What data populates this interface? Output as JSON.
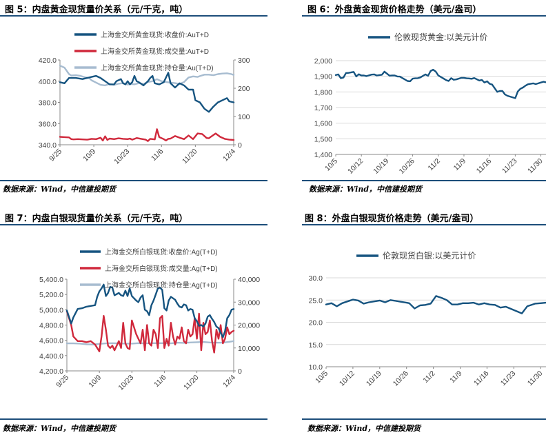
{
  "source_note": "数据来源：Wind，中信建投期货",
  "colors": {
    "navy": "#165480",
    "red": "#d0293c",
    "gray": "#a7bcd0",
    "rule": "#1c4e7a"
  },
  "chart_data": [
    {
      "id": "fig5",
      "type": "line",
      "title": "图 5：内盘黄金现货量价关系（元/千克，吨）",
      "categories": [
        "9/25",
        "10/9",
        "10/23",
        "11/6",
        "11/20",
        "12/4"
      ],
      "ylim": [
        340,
        420
      ],
      "yticks": [
        "420.0",
        "400.0",
        "380.0",
        "360.0",
        "340.0"
      ],
      "y2lim": [
        0,
        300
      ],
      "y2ticks": [
        "300",
        "200",
        "100",
        "0"
      ],
      "legend_position": "top",
      "series": [
        {
          "name": "上海金交所黄金现货:收盘价:AuT+D",
          "axis": "left",
          "color": "#165480",
          "x": [
            0,
            2,
            4,
            5,
            7,
            10,
            12,
            14,
            16,
            18,
            20,
            22,
            24,
            25,
            27,
            28,
            29,
            30,
            31,
            32,
            33,
            34,
            35,
            37,
            39,
            40,
            41,
            42,
            44,
            46,
            48,
            49,
            51,
            53,
            55,
            57,
            59,
            60,
            62,
            64,
            66,
            68,
            70,
            72,
            74,
            75,
            77
          ],
          "values": [
            399,
            398,
            403,
            403,
            403,
            402,
            403,
            404,
            405,
            403,
            400,
            397,
            397,
            400,
            402,
            398,
            397,
            400,
            397,
            399,
            405,
            400,
            399,
            396,
            400,
            403,
            405,
            398,
            397,
            399,
            408,
            398,
            394,
            398,
            396,
            392,
            392,
            382,
            380,
            374,
            371,
            376,
            380,
            382,
            384,
            381,
            380
          ]
        },
        {
          "name": "上海金交所黄金现货:成交量:AuT+D",
          "axis": "right",
          "color": "#d0293c",
          "x": [
            0,
            2,
            4,
            5,
            6,
            8,
            10,
            12,
            14,
            16,
            18,
            19,
            20,
            21,
            22,
            24,
            26,
            28,
            30,
            31,
            32,
            34,
            36,
            38,
            39,
            40,
            42,
            43,
            44,
            46,
            47,
            48,
            49,
            51,
            53,
            55,
            57,
            59,
            61,
            63,
            65,
            66,
            67,
            69,
            71,
            73,
            75,
            77
          ],
          "values": [
            28,
            27,
            26,
            20,
            19,
            20,
            19,
            18,
            21,
            20,
            25,
            15,
            30,
            17,
            22,
            20,
            23,
            21,
            20,
            22,
            18,
            24,
            21,
            18,
            13,
            21,
            19,
            55,
            27,
            20,
            15,
            21,
            22,
            31,
            25,
            20,
            33,
            20,
            40,
            38,
            24,
            23,
            29,
            40,
            28,
            21,
            18,
            17
          ]
        },
        {
          "name": "上海金交所黄金现货:持仓量:Au(T+D)",
          "axis": "right",
          "color": "#a7bcd0",
          "x": [
            0,
            2,
            4,
            5,
            7,
            9,
            11,
            13,
            14,
            16,
            18,
            20,
            22,
            24,
            26,
            28,
            30,
            31,
            33,
            35,
            37,
            39,
            41,
            43,
            45,
            47,
            49,
            51,
            53,
            55,
            57,
            59,
            61,
            62,
            64,
            66,
            68,
            70,
            72,
            74,
            76,
            77
          ],
          "values": [
            280,
            273,
            250,
            245,
            246,
            244,
            239,
            236,
            228,
            220,
            212,
            210,
            215,
            212,
            216,
            218,
            213,
            215,
            214,
            218,
            215,
            222,
            225,
            232,
            225,
            222,
            220,
            218,
            215,
            222,
            238,
            242,
            240,
            243,
            248,
            248,
            246,
            250,
            252,
            253,
            250,
            247
          ]
        }
      ]
    },
    {
      "id": "fig6",
      "type": "line",
      "title": "图 6：外盘黄金现货价格走势（美元/盎司）",
      "categories": [
        "10/5",
        "10/12",
        "10/19",
        "10/26",
        "11/2",
        "11/9",
        "11/16",
        "11/23",
        "11/30"
      ],
      "ylim": [
        1400,
        2000
      ],
      "yticks": [
        "2,000",
        "1,900",
        "1,800",
        "1,700",
        "1,600",
        "1,500",
        "1,400"
      ],
      "legend_position": "top",
      "series": [
        {
          "name": "伦敦现货黄金:以美元计价",
          "color": "#165480",
          "x": [
            0,
            1,
            2,
            3,
            4,
            5,
            7,
            8,
            9,
            10,
            11,
            12,
            14,
            15,
            16,
            17,
            18,
            19,
            21,
            22,
            23,
            24,
            25,
            28,
            29,
            30,
            31,
            32,
            33,
            35,
            36,
            37,
            38,
            39,
            40,
            42,
            43,
            44,
            45,
            46,
            47,
            49,
            50,
            51,
            52,
            53,
            54,
            56,
            57,
            58,
            59,
            60,
            61,
            63,
            64,
            65,
            66,
            67,
            68,
            70,
            71,
            72,
            73,
            74,
            75,
            77,
            78,
            79,
            80,
            81,
            82
          ],
          "values": [
            1908,
            1912,
            1888,
            1892,
            1921,
            1922,
            1928,
            1899,
            1913,
            1905,
            1905,
            1901,
            1911,
            1912,
            1905,
            1908,
            1910,
            1930,
            1904,
            1905,
            1905,
            1899,
            1898,
            1870,
            1868,
            1885,
            1887,
            1888,
            1893,
            1912,
            1903,
            1934,
            1942,
            1930,
            1905,
            1886,
            1876,
            1870,
            1888,
            1878,
            1880,
            1890,
            1890,
            1887,
            1886,
            1884,
            1889,
            1873,
            1877,
            1860,
            1868,
            1852,
            1847,
            1800,
            1806,
            1806,
            1784,
            1775,
            1770,
            1760,
            1803,
            1820,
            1828,
            1840,
            1849,
            1855,
            1850,
            1855,
            1860,
            1865,
            1862
          ]
        }
      ]
    },
    {
      "id": "fig7",
      "type": "line",
      "title": "图 7：内盘白银现货量价关系（元/千克，吨）",
      "categories": [
        "9/25",
        "10/9",
        "10/23",
        "11/6",
        "11/20",
        "12/4"
      ],
      "ylim": [
        4200,
        5400
      ],
      "yticks": [
        "5,400.0",
        "5,200.0",
        "5,000.0",
        "4,800.0",
        "4,600.0",
        "4,400.0",
        "4,200.0"
      ],
      "y2lim": [
        0,
        40000
      ],
      "y2ticks": [
        "40,000",
        "30,000",
        "20,000",
        "10,000",
        "0"
      ],
      "legend_position": "top",
      "series": [
        {
          "name": "上海金交所白银现货:收盘价:Ag(T+D)",
          "axis": "left",
          "color": "#165480",
          "x": [
            0,
            2,
            3,
            5,
            7,
            9,
            11,
            13,
            14,
            15,
            16,
            17,
            18,
            19,
            20,
            21,
            22,
            24,
            25,
            26,
            27,
            28,
            29,
            30,
            32,
            33,
            34,
            35,
            36,
            37,
            38,
            39,
            40,
            41,
            42,
            43,
            44,
            45,
            46,
            47,
            48,
            49,
            50,
            51,
            52,
            53,
            54,
            55,
            56,
            57,
            58,
            59,
            60,
            61,
            62,
            63,
            64,
            65,
            66,
            67,
            68,
            69,
            70,
            71,
            72,
            73,
            74,
            75,
            76,
            77
          ],
          "values": [
            4990,
            4820,
            4900,
            5010,
            5020,
            5040,
            5050,
            5060,
            5170,
            5240,
            5280,
            5330,
            5180,
            5220,
            5300,
            5290,
            5190,
            5220,
            5190,
            5180,
            5250,
            5180,
            5280,
            5180,
            5120,
            5100,
            5160,
            5190,
            5000,
            4980,
            4930,
            5060,
            5120,
            5200,
            5280,
            5290,
            5260,
            5020,
            4990,
            5120,
            5170,
            5150,
            5130,
            5080,
            5040,
            5030,
            5070,
            5060,
            4990,
            5010,
            5000,
            4890,
            4850,
            4790,
            4800,
            4780,
            4820,
            4910,
            4930,
            4880,
            4840,
            4780,
            4760,
            4700,
            4640,
            4720,
            4890,
            4930,
            5000,
            5010
          ]
        },
        {
          "name": "上海金交所白银现货:成交量:Ag(T+D)",
          "axis": "right",
          "color": "#d0293c",
          "x": [
            0,
            2,
            3,
            5,
            7,
            9,
            11,
            13,
            14,
            15,
            16,
            17,
            18,
            19,
            20,
            21,
            22,
            24,
            25,
            26,
            27,
            28,
            29,
            30,
            32,
            33,
            34,
            35,
            36,
            37,
            38,
            39,
            40,
            41,
            42,
            43,
            44,
            45,
            46,
            47,
            48,
            49,
            50,
            51,
            52,
            53,
            54,
            55,
            56,
            57,
            58,
            59,
            60,
            61,
            62,
            63,
            64,
            65,
            66,
            67,
            68,
            69,
            70,
            71,
            72,
            73,
            74,
            75,
            76,
            77
          ],
          "values": [
            26000,
            20000,
            15000,
            13000,
            13000,
            12500,
            13000,
            11500,
            10000,
            8500,
            15000,
            24000,
            18000,
            11000,
            10000,
            11000,
            9000,
            13000,
            10000,
            21000,
            12000,
            10000,
            9500,
            22000,
            16000,
            14000,
            12000,
            18000,
            9000,
            20000,
            12000,
            11000,
            18000,
            16000,
            10000,
            23000,
            24000,
            10000,
            14000,
            11000,
            21000,
            15000,
            11500,
            15000,
            14000,
            19000,
            13000,
            12000,
            18000,
            15000,
            16000,
            23000,
            14000,
            25000,
            9000,
            21000,
            16000,
            17000,
            22000,
            13000,
            8000,
            18000,
            14000,
            20000,
            12000,
            14000,
            19000,
            16000,
            17000,
            17500
          ]
        },
        {
          "name": "上海金交所白银现货:持仓量:Ag(T+D)",
          "axis": "right",
          "color": "#a7bcd0",
          "x": [
            0,
            3,
            6,
            9,
            12,
            15,
            18,
            21,
            24,
            27,
            30,
            33,
            36,
            39,
            42,
            45,
            48,
            51,
            54,
            57,
            60,
            63,
            66,
            69,
            72,
            75,
            77
          ],
          "values": [
            12000,
            12000,
            11900,
            11600,
            11500,
            11800,
            12000,
            12100,
            12000,
            11900,
            11900,
            12100,
            12000,
            12100,
            12100,
            12100,
            12000,
            12300,
            12200,
            12400,
            12500,
            12600,
            12400,
            12300,
            12300,
            12700,
            13000
          ]
        }
      ]
    },
    {
      "id": "fig8",
      "type": "line",
      "title": "图 8：外盘白银现货价格走势（美元/盎司）",
      "categories": [
        "10/5",
        "10/12",
        "10/19",
        "10/26",
        "11/2",
        "11/9",
        "11/16",
        "11/23",
        "11/30"
      ],
      "ylim": [
        10,
        30
      ],
      "yticks": [
        "30.0",
        "25.0",
        "20.0",
        "15.0",
        "10.0"
      ],
      "legend_position": "top",
      "series": [
        {
          "name": "伦敦现货白银:以美元计价",
          "color": "#165480",
          "x": [
            0,
            2,
            4,
            6,
            8,
            10,
            12,
            14,
            16,
            18,
            20,
            22,
            24,
            26,
            28,
            30,
            31,
            33,
            35,
            37,
            39,
            41,
            43,
            45,
            47,
            49,
            51,
            53,
            55,
            57,
            59,
            61,
            63,
            65,
            67,
            69,
            71,
            73,
            75,
            77,
            78,
            80,
            82
          ],
          "values": [
            24.0,
            24.3,
            23.6,
            24.3,
            24.7,
            25.1,
            24.9,
            24.2,
            24.5,
            24.7,
            24.9,
            24.5,
            25.0,
            24.8,
            24.6,
            24.4,
            24.3,
            23.1,
            23.8,
            23.9,
            24.2,
            25.9,
            25.5,
            25.0,
            24.0,
            24.0,
            24.3,
            24.3,
            24.4,
            24.0,
            24.3,
            24.0,
            23.9,
            23.3,
            23.5,
            23.0,
            22.5,
            22.0,
            23.6,
            24.0,
            24.2,
            24.3,
            24.4
          ]
        }
      ]
    }
  ]
}
